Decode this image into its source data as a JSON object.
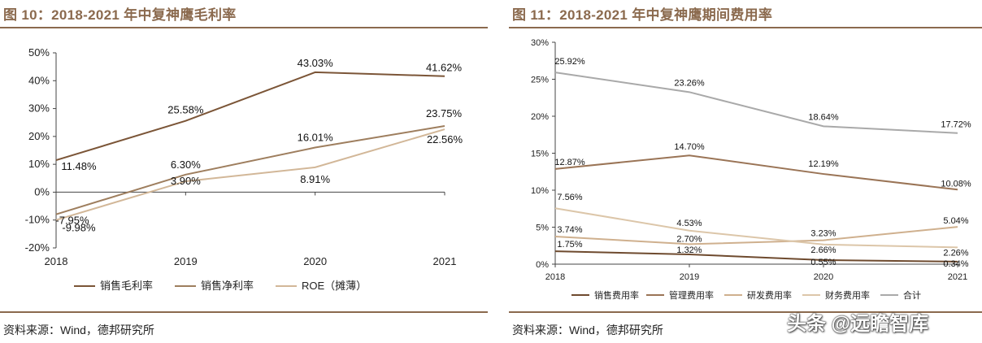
{
  "left_figure": {
    "title": "图 10：2018-2021 年中复神鹰毛利率",
    "source": "资料来源：Wind，德邦研究所"
  },
  "right_figure": {
    "title": "图 11：2018-2021 年中复神鹰期间费用率",
    "source": "资料来源：Wind，德邦研究所"
  },
  "watermark": "头条 @远瞻智库",
  "chart_data": [
    {
      "type": "line",
      "title": "",
      "categories": [
        "2018",
        "2019",
        "2020",
        "2021"
      ],
      "ylim": [
        -20,
        50
      ],
      "yticks": [
        -20,
        -10,
        0,
        10,
        20,
        30,
        40,
        50
      ],
      "ytick_labels": [
        "-20%",
        "-10%",
        "0%",
        "10%",
        "20%",
        "30%",
        "40%",
        "50%"
      ],
      "grid": false,
      "legend_position": "bottom",
      "series": [
        {
          "name": "销售毛利率",
          "values": [
            11.48,
            25.58,
            43.03,
            41.62
          ],
          "labels": [
            "11.48%",
            "25.58%",
            "43.03%",
            "41.62%"
          ],
          "color": "#7B5537"
        },
        {
          "name": "销售净利率",
          "values": [
            -7.95,
            6.3,
            16.01,
            23.75
          ],
          "labels": [
            "-7.95%",
            "6.30%",
            "16.01%",
            "23.75%"
          ],
          "color": "#9E7E5E"
        },
        {
          "name": "ROE（摊薄）",
          "values": [
            -9.98,
            3.9,
            8.91,
            22.56
          ],
          "labels": [
            "-9.98%",
            "3.90%",
            "8.91%",
            "22.56%"
          ],
          "color": "#D2B798"
        }
      ]
    },
    {
      "type": "line",
      "title": "",
      "categories": [
        "2018",
        "2019",
        "2020",
        "2021"
      ],
      "ylim": [
        0,
        30
      ],
      "yticks": [
        0,
        5,
        10,
        15,
        20,
        25,
        30
      ],
      "ytick_labels": [
        "0%",
        "5%",
        "10%",
        "15%",
        "20%",
        "25%",
        "30%"
      ],
      "grid": false,
      "legend_position": "bottom",
      "series": [
        {
          "name": "销售费用率",
          "values": [
            1.75,
            1.32,
            0.55,
            0.34
          ],
          "labels": [
            "1.75%",
            "1.32%",
            "0.55%",
            "0.34%"
          ],
          "color": "#6E4A2E"
        },
        {
          "name": "管理费用率",
          "values": [
            12.87,
            14.7,
            12.19,
            10.08
          ],
          "labels": [
            "12.87%",
            "14.70%",
            "12.19%",
            "10.08%"
          ],
          "color": "#9A7456"
        },
        {
          "name": "研发费用率",
          "values": [
            3.74,
            2.7,
            3.23,
            5.04
          ],
          "labels": [
            "3.74%",
            "2.70%",
            "3.23%",
            "5.04%"
          ],
          "color": "#CFB08E"
        },
        {
          "name": "财务费用率",
          "values": [
            7.56,
            4.53,
            2.66,
            2.26
          ],
          "labels": [
            "7.56%",
            "4.53%",
            "2.66%",
            "2.26%"
          ],
          "color": "#DCC6A9"
        },
        {
          "name": "合计",
          "values": [
            25.92,
            23.26,
            18.64,
            17.72
          ],
          "labels": [
            "25.92%",
            "23.26%",
            "18.64%",
            "17.72%"
          ],
          "color": "#A9A9A9"
        }
      ]
    }
  ]
}
